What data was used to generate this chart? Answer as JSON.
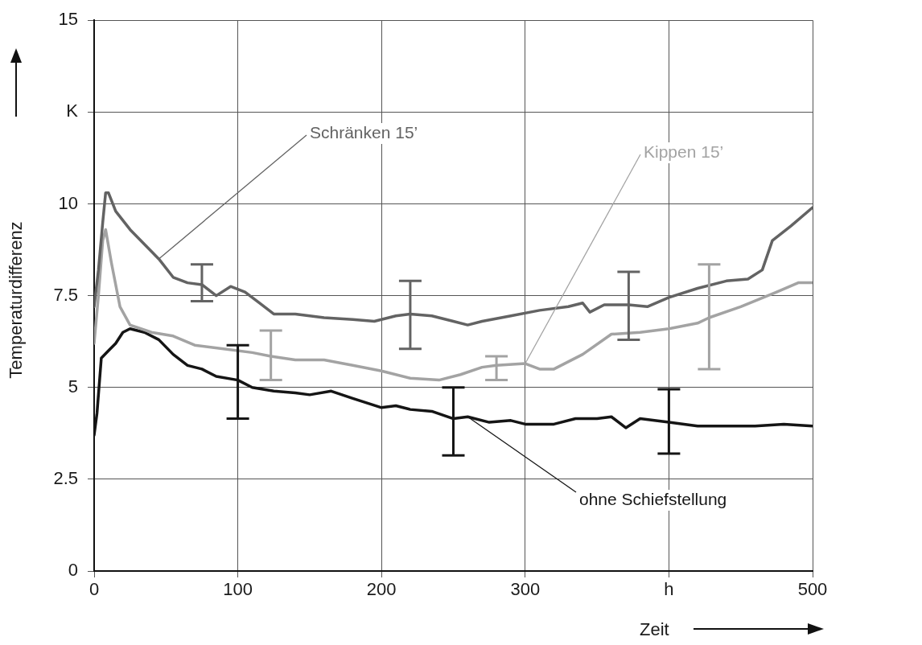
{
  "chart_data": {
    "type": "line",
    "xlabel": "Zeit",
    "ylabel": "Temperaturdifferenz",
    "xlim": [
      0,
      500
    ],
    "xticks": [
      0,
      100,
      200,
      300,
      {
        "value": 400,
        "label": "h"
      },
      500
    ],
    "ylim": [
      0,
      15
    ],
    "yticks": [
      0,
      2.5,
      5,
      7.5,
      10,
      {
        "value": 12.5,
        "label": "K"
      },
      15
    ],
    "grid": true,
    "legend": false,
    "marker": "none",
    "line_style": "solid",
    "series": [
      {
        "name": "Schränken 15’",
        "color": "#636363",
        "x": [
          0,
          3,
          6,
          8,
          10,
          15,
          25,
          35,
          45,
          55,
          65,
          75,
          85,
          95,
          105,
          115,
          125,
          140,
          160,
          180,
          195,
          210,
          220,
          235,
          250,
          260,
          270,
          290,
          310,
          330,
          340,
          345,
          355,
          372,
          385,
          400,
          420,
          440,
          455,
          465,
          472,
          485,
          500
        ],
        "values": [
          7.2,
          8.2,
          9.5,
          10.3,
          10.3,
          9.8,
          9.3,
          8.9,
          8.5,
          8.0,
          7.85,
          7.8,
          7.5,
          7.75,
          7.6,
          7.3,
          7.0,
          7.0,
          6.9,
          6.85,
          6.8,
          6.95,
          7.0,
          6.95,
          6.8,
          6.7,
          6.8,
          6.95,
          7.1,
          7.2,
          7.3,
          7.05,
          7.25,
          7.25,
          7.2,
          7.45,
          7.7,
          7.9,
          7.95,
          8.2,
          9.0,
          9.4,
          9.9
        ],
        "errors": [
          null,
          null,
          null,
          null,
          null,
          null,
          null,
          null,
          null,
          null,
          null,
          [
            7.35,
            8.35
          ],
          null,
          null,
          null,
          null,
          null,
          null,
          null,
          null,
          null,
          null,
          [
            6.05,
            7.9
          ],
          null,
          null,
          null,
          null,
          null,
          null,
          null,
          null,
          null,
          null,
          [
            6.3,
            8.15
          ],
          null,
          null,
          null,
          null,
          null,
          null,
          null,
          null,
          null
        ]
      },
      {
        "name": "Kippen 15’",
        "color": "#a3a3a3",
        "x": [
          0,
          3,
          6,
          8,
          12,
          18,
          25,
          40,
          55,
          70,
          90,
          110,
          123,
          140,
          160,
          180,
          200,
          220,
          240,
          255,
          270,
          280,
          300,
          310,
          320,
          340,
          360,
          380,
          400,
          420,
          428,
          450,
          475,
          490,
          500
        ],
        "values": [
          6.2,
          7.5,
          9.0,
          9.3,
          8.4,
          7.2,
          6.7,
          6.5,
          6.4,
          6.15,
          6.05,
          5.95,
          5.85,
          5.75,
          5.75,
          5.6,
          5.45,
          5.25,
          5.2,
          5.35,
          5.55,
          5.6,
          5.65,
          5.5,
          5.5,
          5.9,
          6.45,
          6.5,
          6.6,
          6.75,
          6.9,
          7.2,
          7.6,
          7.85,
          7.85
        ],
        "errors": [
          null,
          null,
          null,
          null,
          null,
          null,
          null,
          null,
          null,
          null,
          null,
          null,
          [
            5.2,
            6.55
          ],
          null,
          null,
          null,
          null,
          null,
          null,
          null,
          null,
          [
            5.2,
            5.85
          ],
          null,
          null,
          null,
          null,
          null,
          null,
          null,
          null,
          [
            5.5,
            8.35
          ],
          null,
          null,
          null,
          null
        ]
      },
      {
        "name": "ohne Schiefstellung",
        "color": "#151515",
        "x": [
          0,
          2,
          5,
          10,
          15,
          20,
          25,
          35,
          45,
          55,
          65,
          75,
          85,
          100,
          110,
          125,
          140,
          150,
          165,
          180,
          200,
          210,
          220,
          235,
          250,
          260,
          275,
          290,
          300,
          320,
          335,
          350,
          360,
          370,
          380,
          400,
          420,
          440,
          460,
          480,
          500
        ],
        "values": [
          3.7,
          4.3,
          5.8,
          6.0,
          6.2,
          6.5,
          6.6,
          6.5,
          6.3,
          5.9,
          5.6,
          5.5,
          5.3,
          5.2,
          5.0,
          4.9,
          4.85,
          4.8,
          4.9,
          4.7,
          4.45,
          4.5,
          4.4,
          4.35,
          4.15,
          4.2,
          4.05,
          4.1,
          4.0,
          4.0,
          4.15,
          4.15,
          4.2,
          3.9,
          4.15,
          4.05,
          3.95,
          3.95,
          3.95,
          4.0,
          3.95
        ],
        "errors": [
          null,
          null,
          null,
          null,
          null,
          null,
          null,
          null,
          null,
          null,
          null,
          null,
          null,
          [
            4.15,
            6.15
          ],
          null,
          null,
          null,
          null,
          null,
          null,
          null,
          null,
          null,
          null,
          [
            3.15,
            5.0
          ],
          null,
          null,
          null,
          null,
          null,
          null,
          null,
          null,
          null,
          null,
          [
            3.2,
            4.95
          ],
          null,
          null,
          null,
          null,
          null
        ]
      }
    ]
  }
}
